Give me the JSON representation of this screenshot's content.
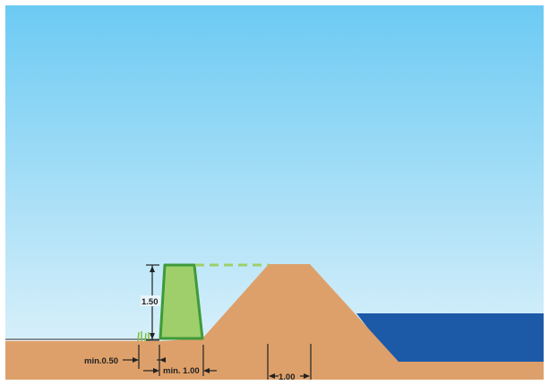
{
  "dimensions": {
    "dike_height": "1.50",
    "min_offset_left": "min.0.50",
    "min_dike_width": "min. 1.00",
    "min_crest_gap": "1.00"
  },
  "colors": {
    "sky_top": "#6ccaf3",
    "sky_bottom": "#e4f4fb",
    "earth": "#dea06a",
    "dike_fill": "#9fcf6b",
    "dike_outline": "#3e9a3a",
    "water": "#1c5aa8",
    "ground_line": "#555555",
    "dimension_line": "#222222"
  }
}
